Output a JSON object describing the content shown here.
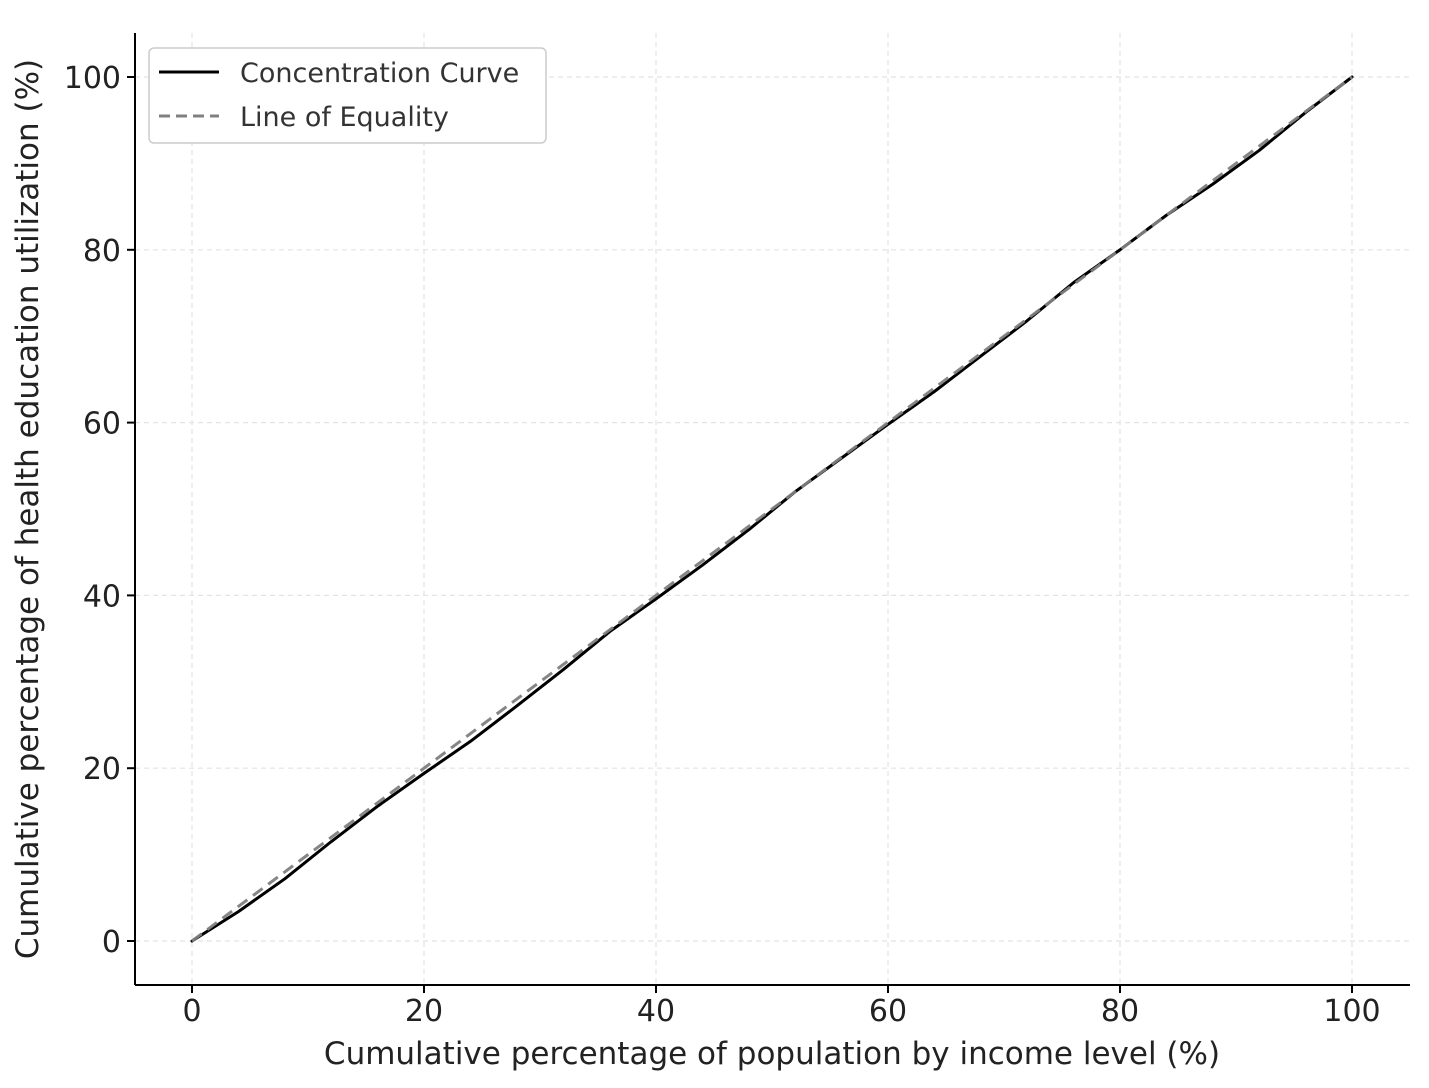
{
  "chart_data": {
    "type": "line",
    "xlabel": "Cumulative percentage of population by income level (%)",
    "ylabel": "Cumulative percentage of health education utilization (%)",
    "xlim": [
      -5,
      105
    ],
    "ylim": [
      -5,
      105
    ],
    "xticks": [
      0,
      20,
      40,
      60,
      80,
      100
    ],
    "yticks": [
      0,
      20,
      40,
      60,
      80,
      100
    ],
    "grid": true,
    "legend_position": "top-left",
    "series": [
      {
        "name": "Concentration Curve",
        "color": "#000000",
        "style": "solid",
        "x": [
          0,
          4,
          8,
          12,
          16,
          20,
          24,
          28,
          32,
          36,
          40,
          44,
          48,
          52,
          56,
          60,
          64,
          68,
          72,
          76,
          80,
          84,
          88,
          92,
          96,
          100
        ],
        "y": [
          0,
          3.4,
          7.2,
          11.5,
          15.6,
          19.4,
          23.1,
          27.2,
          31.4,
          35.8,
          39.6,
          43.5,
          47.6,
          52.0,
          55.9,
          59.8,
          63.6,
          67.7,
          71.8,
          76.2,
          80.0,
          84.0,
          87.6,
          91.5,
          95.9,
          100
        ]
      },
      {
        "name": "Line of Equality",
        "color": "#808080",
        "style": "dashed",
        "x": [
          0,
          100
        ],
        "y": [
          0,
          100
        ]
      }
    ]
  }
}
